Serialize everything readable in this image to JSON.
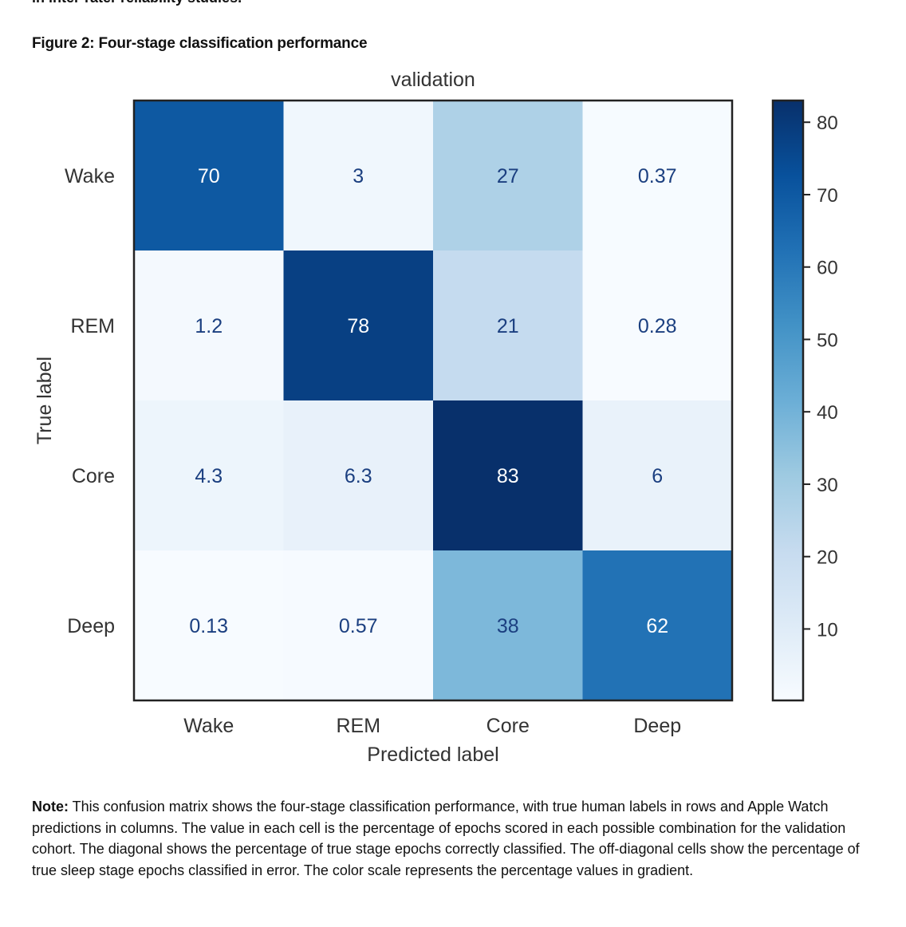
{
  "page": {
    "cut_text": "in inter-rater reliability studies.",
    "figure_heading": "Figure 2: Four-stage classification performance",
    "note_label": "Note:",
    "note_text": " This confusion matrix shows the four-stage classification performance, with true human labels in rows and Apple Watch predictions in columns. The value in each cell is the percentage of epochs scored in each possible combination for the validation cohort. The diagonal shows the percentage of true stage epochs correctly classified. The off-diagonal cells show the percentage of true sleep stage epochs classified in error. The color scale represents the percentage values in gradient."
  },
  "chart_data": {
    "type": "heatmap",
    "title": "validation",
    "xlabel": "Predicted label",
    "ylabel": "True label",
    "x_categories": [
      "Wake",
      "REM",
      "Core",
      "Deep"
    ],
    "y_categories": [
      "Wake",
      "REM",
      "Core",
      "Deep"
    ],
    "values": [
      [
        70,
        3,
        27,
        0.37
      ],
      [
        1.2,
        78,
        21,
        0.28
      ],
      [
        4.3,
        6.3,
        83,
        6
      ],
      [
        0.13,
        0.57,
        38,
        62
      ]
    ],
    "cell_labels": [
      [
        "70",
        "3",
        "27",
        "0.37"
      ],
      [
        "1.2",
        "78",
        "21",
        "0.28"
      ],
      [
        "4.3",
        "6.3",
        "83",
        "6"
      ],
      [
        "0.13",
        "0.57",
        "38",
        "62"
      ]
    ],
    "colorbar": {
      "ticks": [
        10,
        20,
        30,
        40,
        50,
        60,
        70,
        80
      ],
      "range": [
        0.13,
        83
      ],
      "colormap": "Blues"
    },
    "colors": {
      "text_dark": "#1b3f80",
      "text_light": "#ffffff",
      "axis_text": "#333333"
    }
  }
}
